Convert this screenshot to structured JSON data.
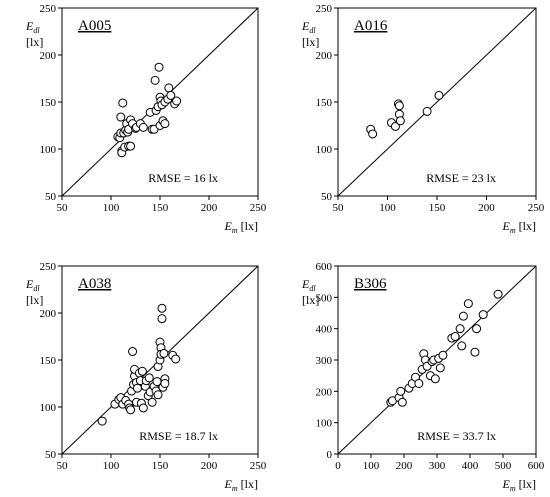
{
  "chart_data": [
    {
      "type": "scatter",
      "title": "A005",
      "xlabel": "E",
      "xlabel_sub": "m",
      "xlabel_unit": "[lx]",
      "ylabel": "E",
      "ylabel_sub": "dl",
      "ylabel_unit": "[lx]",
      "xlim": [
        50,
        250
      ],
      "ylim": [
        50,
        250
      ],
      "xticks": [
        50,
        100,
        150,
        200,
        250
      ],
      "yticks": [
        50,
        100,
        150,
        200,
        250
      ],
      "annotation": "RMSE = 16 lx",
      "reference_line": "y = x",
      "points": [
        [
          107,
          113
        ],
        [
          109,
          112
        ],
        [
          110,
          117
        ],
        [
          110,
          134
        ],
        [
          111,
          98
        ],
        [
          111,
          96
        ],
        [
          112,
          149
        ],
        [
          113,
          117
        ],
        [
          114,
          102
        ],
        [
          115,
          120
        ],
        [
          116,
          127
        ],
        [
          117,
          118
        ],
        [
          118,
          121
        ],
        [
          118,
          103
        ],
        [
          120,
          103
        ],
        [
          120,
          131
        ],
        [
          122,
          127
        ],
        [
          125,
          122
        ],
        [
          126,
          123
        ],
        [
          130,
          127
        ],
        [
          133,
          123
        ],
        [
          140,
          139
        ],
        [
          142,
          121
        ],
        [
          144,
          121
        ],
        [
          145,
          173
        ],
        [
          146,
          141
        ],
        [
          148,
          145
        ],
        [
          149,
          187
        ],
        [
          150,
          155
        ],
        [
          150,
          125
        ],
        [
          151,
          151
        ],
        [
          152,
          147
        ],
        [
          153,
          130
        ],
        [
          155,
          127
        ],
        [
          155,
          150
        ],
        [
          158,
          153
        ],
        [
          159,
          165
        ],
        [
          161,
          157
        ],
        [
          165,
          148
        ],
        [
          167,
          151
        ]
      ]
    },
    {
      "type": "scatter",
      "title": "A016",
      "xlabel": "E",
      "xlabel_sub": "m",
      "xlabel_unit": "[lx]",
      "ylabel": "E",
      "ylabel_sub": "dl",
      "ylabel_unit": "[lx]",
      "xlim": [
        50,
        250
      ],
      "ylim": [
        50,
        250
      ],
      "xticks": [
        50,
        100,
        150,
        200,
        250
      ],
      "yticks": [
        50,
        100,
        150,
        200,
        250
      ],
      "annotation": "RMSE = 23 lx",
      "reference_line": "y = x",
      "points": [
        [
          83,
          121
        ],
        [
          85,
          116
        ],
        [
          104,
          128
        ],
        [
          108,
          124
        ],
        [
          111,
          148
        ],
        [
          112,
          146
        ],
        [
          112,
          137
        ],
        [
          113,
          130
        ],
        [
          140,
          140
        ],
        [
          152,
          157
        ]
      ]
    },
    {
      "type": "scatter",
      "title": "A038",
      "xlabel": "E",
      "xlabel_sub": "m",
      "xlabel_unit": "[lx]",
      "ylabel": "E",
      "ylabel_sub": "dl",
      "ylabel_unit": "[lx]",
      "xlim": [
        50,
        250
      ],
      "ylim": [
        50,
        250
      ],
      "xticks": [
        50,
        100,
        150,
        200,
        250
      ],
      "yticks": [
        50,
        100,
        150,
        200,
        250
      ],
      "annotation": "RMSE = 18.7 lx",
      "reference_line": "y = x",
      "points": [
        [
          91,
          85
        ],
        [
          104,
          103
        ],
        [
          108,
          108
        ],
        [
          110,
          110
        ],
        [
          112,
          103
        ],
        [
          115,
          107
        ],
        [
          118,
          103
        ],
        [
          119,
          99
        ],
        [
          120,
          97
        ],
        [
          121,
          117
        ],
        [
          122,
          159
        ],
        [
          123,
          124
        ],
        [
          124,
          133
        ],
        [
          124,
          140
        ],
        [
          126,
          126
        ],
        [
          126,
          105
        ],
        [
          127,
          120
        ],
        [
          129,
          136
        ],
        [
          130,
          128
        ],
        [
          131,
          104
        ],
        [
          132,
          138
        ],
        [
          133,
          99
        ],
        [
          135,
          122
        ],
        [
          136,
          128
        ],
        [
          138,
          112
        ],
        [
          139,
          131
        ],
        [
          140,
          116
        ],
        [
          142,
          105
        ],
        [
          144,
          122
        ],
        [
          146,
          117
        ],
        [
          147,
          127
        ],
        [
          148,
          113
        ],
        [
          148,
          143
        ],
        [
          150,
          150
        ],
        [
          150,
          169
        ],
        [
          151,
          163
        ],
        [
          151,
          156
        ],
        [
          152,
          194
        ],
        [
          152,
          205
        ],
        [
          153,
          121
        ],
        [
          154,
          157
        ],
        [
          155,
          130
        ],
        [
          155,
          125
        ],
        [
          163,
          155
        ],
        [
          166,
          151
        ]
      ]
    },
    {
      "type": "scatter",
      "title": "B306",
      "xlabel": "E",
      "xlabel_sub": "m",
      "xlabel_unit": "[lx]",
      "ylabel": "E",
      "ylabel_sub": "dl",
      "ylabel_unit": "[lx]",
      "xlim": [
        0,
        600
      ],
      "ylim": [
        0,
        600
      ],
      "xticks": [
        0,
        100,
        200,
        300,
        400,
        500,
        600
      ],
      "yticks": [
        0,
        100,
        200,
        300,
        400,
        500,
        600
      ],
      "annotation": "RMSE = 33.7 lx",
      "reference_line": "y = x",
      "points": [
        [
          160,
          165
        ],
        [
          165,
          170
        ],
        [
          185,
          180
        ],
        [
          190,
          200
        ],
        [
          195,
          165
        ],
        [
          215,
          210
        ],
        [
          225,
          225
        ],
        [
          235,
          245
        ],
        [
          245,
          225
        ],
        [
          255,
          270
        ],
        [
          260,
          320
        ],
        [
          265,
          300
        ],
        [
          270,
          280
        ],
        [
          280,
          250
        ],
        [
          285,
          295
        ],
        [
          290,
          300
        ],
        [
          295,
          240
        ],
        [
          305,
          305
        ],
        [
          310,
          275
        ],
        [
          318,
          315
        ],
        [
          345,
          370
        ],
        [
          355,
          375
        ],
        [
          370,
          400
        ],
        [
          375,
          345
        ],
        [
          380,
          440
        ],
        [
          395,
          480
        ],
        [
          415,
          325
        ],
        [
          420,
          400
        ],
        [
          440,
          445
        ],
        [
          485,
          510
        ]
      ]
    }
  ]
}
